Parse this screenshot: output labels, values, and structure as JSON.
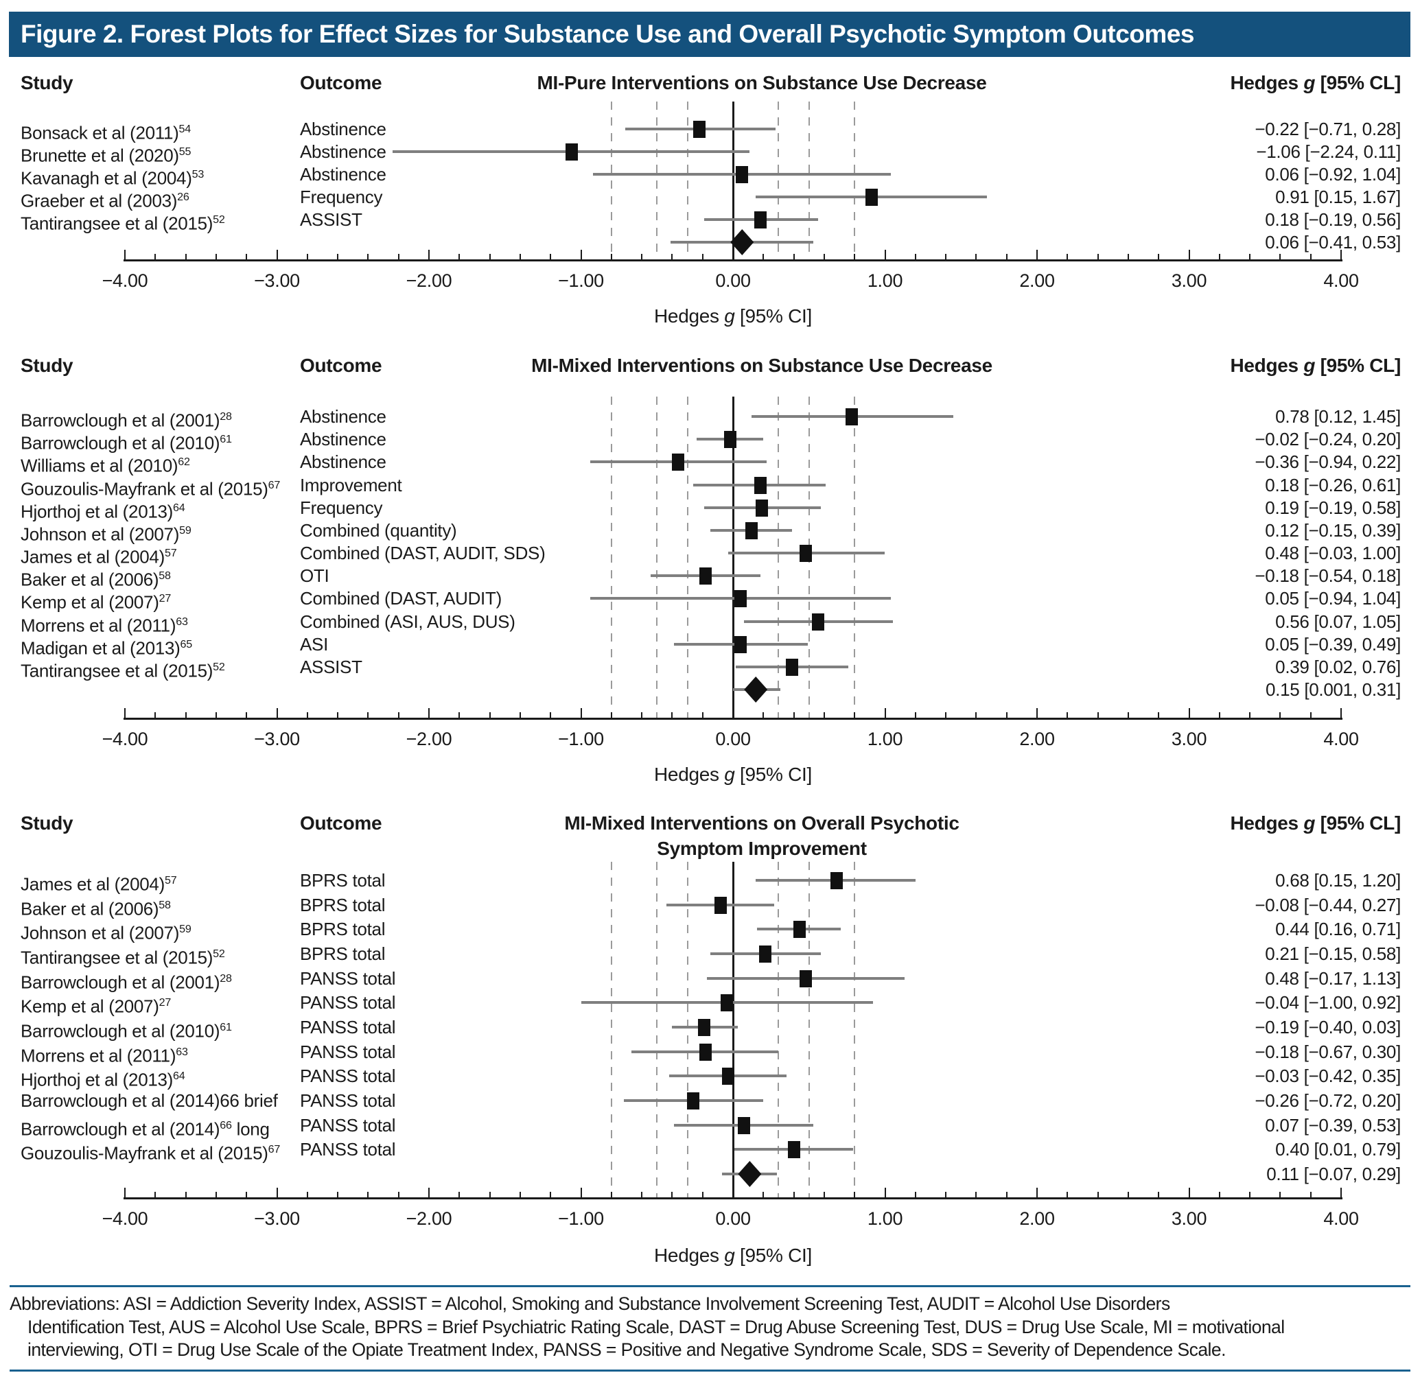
{
  "figure_title": "Figure 2. Forest Plots for Effect Sizes for Substance Use and Overall Psychotic Symptom Outcomes",
  "colors": {
    "title_bar": "#14517d",
    "divider_rule": "#19618f",
    "ci_line": "#7f7f7f",
    "marker": "#111111",
    "gridline": "#9a9a9a",
    "text": "#1a1a1a"
  },
  "chart_data": {
    "type": "scatter",
    "subtype": "forest-plot",
    "axis": {
      "min": -4,
      "max": 4,
      "major_step": 1,
      "minor_step": 0.2,
      "tick_labels": [
        "−4.00",
        "−3.00",
        "−2.00",
        "−1.00",
        "0.00",
        "1.00",
        "2.00",
        "3.00",
        "4.00"
      ],
      "gridlines": [
        -0.8,
        -0.5,
        -0.3,
        0.3,
        0.5,
        0.8
      ],
      "zero_line": 0,
      "label_prefix": "Hedges ",
      "label_italic": "g",
      "label_suffix": " [95% CI]"
    },
    "col_headers": {
      "study": "Study",
      "outcome": "Outcome",
      "effect_prefix": "Hedges ",
      "effect_italic": "g",
      "effect_suffix": " [95% CL]"
    },
    "plots": [
      {
        "title_line1": "MI-Pure Interventions on Substance Use Decrease",
        "rows": [
          {
            "study": "Bonsack et al (2011)",
            "ref": "54",
            "suffix": "",
            "outcome": "Abstinence",
            "es": -0.22,
            "lo": -0.71,
            "hi": 0.28,
            "label": "−0.22 [−0.71, 0.28]"
          },
          {
            "study": "Brunette et al (2020)",
            "ref": "55",
            "suffix": "",
            "outcome": "Abstinence",
            "es": -1.06,
            "lo": -2.24,
            "hi": 0.11,
            "label": "−1.06 [−2.24, 0.11]"
          },
          {
            "study": "Kavanagh et al (2004)",
            "ref": "53",
            "suffix": "",
            "outcome": "Abstinence",
            "es": 0.06,
            "lo": -0.92,
            "hi": 1.04,
            "label": "0.06 [−0.92, 1.04]"
          },
          {
            "study": "Graeber et al (2003)",
            "ref": "26",
            "suffix": "",
            "outcome": "Frequency",
            "es": 0.91,
            "lo": 0.15,
            "hi": 1.67,
            "label": "0.91 [0.15, 1.67]"
          },
          {
            "study": "Tantirangsee et al (2015)",
            "ref": "52",
            "suffix": "",
            "outcome": "ASSIST",
            "es": 0.18,
            "lo": -0.19,
            "hi": 0.56,
            "label": "0.18 [−0.19, 0.56]"
          }
        ],
        "pooled": {
          "es": 0.06,
          "lo": -0.41,
          "hi": 0.53,
          "label": "0.06 [−0.41, 0.53]"
        }
      },
      {
        "title_line1": "MI-Mixed Interventions on Substance Use Decrease",
        "rows": [
          {
            "study": "Barrowclough et al (2001)",
            "ref": "28",
            "suffix": "",
            "outcome": "Abstinence",
            "es": 0.78,
            "lo": 0.12,
            "hi": 1.45,
            "label": "0.78 [0.12, 1.45]"
          },
          {
            "study": "Barrowclough et al (2010)",
            "ref": "61",
            "suffix": "",
            "outcome": "Abstinence",
            "es": -0.02,
            "lo": -0.24,
            "hi": 0.2,
            "label": "−0.02 [−0.24, 0.20]"
          },
          {
            "study": "Williams et al (2010)",
            "ref": "62",
            "suffix": "",
            "outcome": "Abstinence",
            "es": -0.36,
            "lo": -0.94,
            "hi": 0.22,
            "label": "−0.36 [−0.94, 0.22]"
          },
          {
            "study": "Gouzoulis-Mayfrank et al (2015)",
            "ref": "67",
            "suffix": "",
            "outcome": "Improvement",
            "es": 0.18,
            "lo": -0.26,
            "hi": 0.61,
            "label": "0.18 [−0.26, 0.61]"
          },
          {
            "study": "Hjorthoj et al (2013)",
            "ref": "64",
            "suffix": "",
            "outcome": "Frequency",
            "es": 0.19,
            "lo": -0.19,
            "hi": 0.58,
            "label": "0.19 [−0.19, 0.58]"
          },
          {
            "study": "Johnson et al (2007)",
            "ref": "59",
            "suffix": "",
            "outcome": "Combined (quantity)",
            "es": 0.12,
            "lo": -0.15,
            "hi": 0.39,
            "label": "0.12 [−0.15, 0.39]"
          },
          {
            "study": "James et al (2004)",
            "ref": "57",
            "suffix": "",
            "outcome": "Combined (DAST, AUDIT, SDS)",
            "es": 0.48,
            "lo": -0.03,
            "hi": 1.0,
            "label": "0.48 [−0.03, 1.00]"
          },
          {
            "study": "Baker et al (2006)",
            "ref": "58",
            "suffix": "",
            "outcome": "OTI",
            "es": -0.18,
            "lo": -0.54,
            "hi": 0.18,
            "label": "−0.18 [−0.54, 0.18]"
          },
          {
            "study": "Kemp et al (2007)",
            "ref": "27",
            "suffix": "",
            "outcome": "Combined (DAST, AUDIT)",
            "es": 0.05,
            "lo": -0.94,
            "hi": 1.04,
            "label": "0.05 [−0.94, 1.04]"
          },
          {
            "study": "Morrens et al (2011)",
            "ref": "63",
            "suffix": "",
            "outcome": "Combined (ASI, AUS, DUS)",
            "es": 0.56,
            "lo": 0.07,
            "hi": 1.05,
            "label": "0.56 [0.07, 1.05]"
          },
          {
            "study": "Madigan et al (2013)",
            "ref": "65",
            "suffix": "",
            "outcome": "ASI",
            "es": 0.05,
            "lo": -0.39,
            "hi": 0.49,
            "label": "0.05 [−0.39, 0.49]"
          },
          {
            "study": "Tantirangsee et al (2015)",
            "ref": "52",
            "suffix": "",
            "outcome": "ASSIST",
            "es": 0.39,
            "lo": 0.02,
            "hi": 0.76,
            "label": "0.39 [0.02, 0.76]"
          }
        ],
        "pooled": {
          "es": 0.15,
          "lo": 0.001,
          "hi": 0.31,
          "label": "0.15 [0.001, 0.31]"
        }
      },
      {
        "title_line1": "MI-Mixed Interventions on Overall Psychotic",
        "title_line2": "Symptom Improvement",
        "rows": [
          {
            "study": "James et al (2004)",
            "ref": "57",
            "suffix": "",
            "outcome": "BPRS total",
            "es": 0.68,
            "lo": 0.15,
            "hi": 1.2,
            "label": "0.68 [0.15, 1.20]"
          },
          {
            "study": "Baker et al (2006)",
            "ref": "58",
            "suffix": "",
            "outcome": "BPRS total",
            "es": -0.08,
            "lo": -0.44,
            "hi": 0.27,
            "label": "−0.08 [−0.44, 0.27]"
          },
          {
            "study": "Johnson et al (2007)",
            "ref": "59",
            "suffix": "",
            "outcome": "BPRS total",
            "es": 0.44,
            "lo": 0.16,
            "hi": 0.71,
            "label": "0.44 [0.16, 0.71]"
          },
          {
            "study": "Tantirangsee et al (2015)",
            "ref": "52",
            "suffix": "",
            "outcome": "BPRS total",
            "es": 0.21,
            "lo": -0.15,
            "hi": 0.58,
            "label": "0.21 [−0.15, 0.58]"
          },
          {
            "study": "Barrowclough et al (2001)",
            "ref": "28",
            "suffix": "",
            "outcome": "PANSS total",
            "es": 0.48,
            "lo": -0.17,
            "hi": 1.13,
            "label": "0.48 [−0.17, 1.13]"
          },
          {
            "study": "Kemp et al (2007)",
            "ref": "27",
            "suffix": "",
            "outcome": "PANSS total",
            "es": -0.04,
            "lo": -1.0,
            "hi": 0.92,
            "label": "−0.04 [−1.00, 0.92]"
          },
          {
            "study": "Barrowclough et al (2010)",
            "ref": "61",
            "suffix": "",
            "outcome": "PANSS total",
            "es": -0.19,
            "lo": -0.4,
            "hi": 0.03,
            "label": "−0.19 [−0.40, 0.03]"
          },
          {
            "study": "Morrens et al (2011)",
            "ref": "63",
            "suffix": "",
            "outcome": "PANSS total",
            "es": -0.18,
            "lo": -0.67,
            "hi": 0.3,
            "label": "−0.18 [−0.67, 0.30]"
          },
          {
            "study": "Hjorthoj et al (2013)",
            "ref": "64",
            "suffix": "",
            "outcome": "PANSS total",
            "es": -0.03,
            "lo": -0.42,
            "hi": 0.35,
            "label": "−0.03 [−0.42, 0.35]"
          },
          {
            "study": "Barrowclough et al (2014)66 brief",
            "ref": "",
            "suffix": "",
            "outcome": "PANSS total",
            "es": -0.26,
            "lo": -0.72,
            "hi": 0.2,
            "label": "−0.26 [−0.72, 0.20]"
          },
          {
            "study": "Barrowclough et al (2014)",
            "ref": "66",
            "suffix": " long",
            "outcome": "PANSS total",
            "es": 0.07,
            "lo": -0.39,
            "hi": 0.53,
            "label": "0.07 [−0.39, 0.53]"
          },
          {
            "study": "Gouzoulis-Mayfrank et al (2015)",
            "ref": "67",
            "suffix": "",
            "outcome": "PANSS total",
            "es": 0.4,
            "lo": 0.01,
            "hi": 0.79,
            "label": "0.40 [0.01, 0.79]"
          }
        ],
        "pooled": {
          "es": 0.11,
          "lo": -0.07,
          "hi": 0.29,
          "label": "0.11 [−0.07, 0.29]"
        }
      }
    ]
  },
  "abbreviations": {
    "line1": "Abbreviations: ASI = Addiction Severity Index, ASSIST = Alcohol, Smoking and Substance Involvement Screening Test, AUDIT = Alcohol Use Disorders",
    "line2": "Identification Test, AUS = Alcohol Use Scale, BPRS = Brief Psychiatric Rating Scale, DAST = Drug Abuse Screening Test, DUS = Drug Use Scale, MI = motivational",
    "line3": "interviewing, OTI = Drug Use Scale of the Opiate Treatment Index, PANSS = Positive and Negative Syndrome Scale, SDS = Severity of Dependence Scale."
  }
}
